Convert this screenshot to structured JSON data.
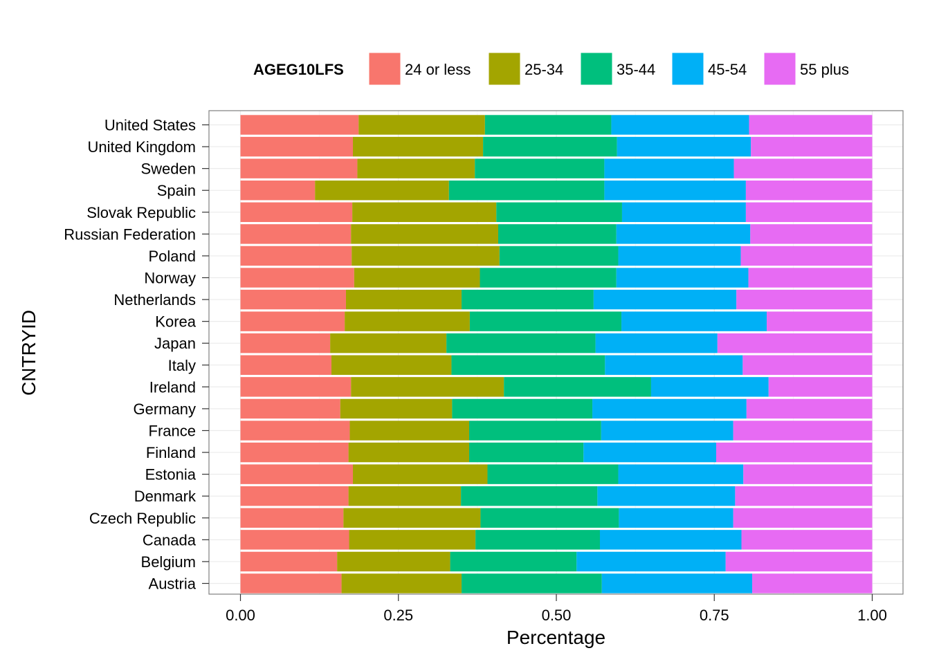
{
  "chart_data": {
    "type": "bar",
    "orientation": "horizontal",
    "stacked": true,
    "xlabel": "Percentage",
    "ylabel": "CNTRYID",
    "xlim": [
      0,
      1
    ],
    "xticks": [
      "0.00",
      "0.25",
      "0.50",
      "0.75",
      "1.00"
    ],
    "grid": true,
    "legend": {
      "title": "AGEG10LFS",
      "position": "top",
      "entries": [
        "24 or less",
        "25-34",
        "35-44",
        "45-54",
        "55 plus"
      ]
    },
    "colors": [
      "#F8766D",
      "#A3A500",
      "#00BF7D",
      "#00B0F6",
      "#E76BF3"
    ],
    "categories": [
      "Austria",
      "Belgium",
      "Canada",
      "Czech Republic",
      "Denmark",
      "Estonia",
      "Finland",
      "France",
      "Germany",
      "Ireland",
      "Italy",
      "Japan",
      "Korea",
      "Netherlands",
      "Norway",
      "Poland",
      "Russian Federation",
      "Slovak Republic",
      "Spain",
      "Sweden",
      "United Kingdom",
      "United States"
    ],
    "series": [
      {
        "name": "24 or less",
        "values": [
          0.16,
          0.153,
          0.172,
          0.163,
          0.171,
          0.178,
          0.171,
          0.173,
          0.158,
          0.175,
          0.144,
          0.142,
          0.165,
          0.167,
          0.18,
          0.176,
          0.175,
          0.177,
          0.118,
          0.185,
          0.178,
          0.187
        ]
      },
      {
        "name": "25-34",
        "values": [
          0.19,
          0.179,
          0.2,
          0.217,
          0.178,
          0.213,
          0.191,
          0.189,
          0.177,
          0.242,
          0.19,
          0.184,
          0.198,
          0.183,
          0.199,
          0.234,
          0.233,
          0.228,
          0.212,
          0.186,
          0.206,
          0.2
        ]
      },
      {
        "name": "35-44",
        "values": [
          0.222,
          0.2,
          0.197,
          0.219,
          0.216,
          0.207,
          0.181,
          0.209,
          0.222,
          0.233,
          0.243,
          0.236,
          0.24,
          0.209,
          0.216,
          0.188,
          0.187,
          0.199,
          0.246,
          0.205,
          0.212,
          0.2
        ]
      },
      {
        "name": "45-54",
        "values": [
          0.238,
          0.236,
          0.224,
          0.181,
          0.218,
          0.198,
          0.21,
          0.209,
          0.244,
          0.186,
          0.218,
          0.193,
          0.23,
          0.226,
          0.209,
          0.194,
          0.212,
          0.196,
          0.224,
          0.205,
          0.212,
          0.218
        ]
      },
      {
        "name": "55 plus",
        "values": [
          0.19,
          0.232,
          0.207,
          0.22,
          0.217,
          0.204,
          0.247,
          0.22,
          0.199,
          0.164,
          0.205,
          0.245,
          0.167,
          0.215,
          0.196,
          0.208,
          0.193,
          0.2,
          0.2,
          0.219,
          0.192,
          0.195
        ]
      }
    ]
  }
}
